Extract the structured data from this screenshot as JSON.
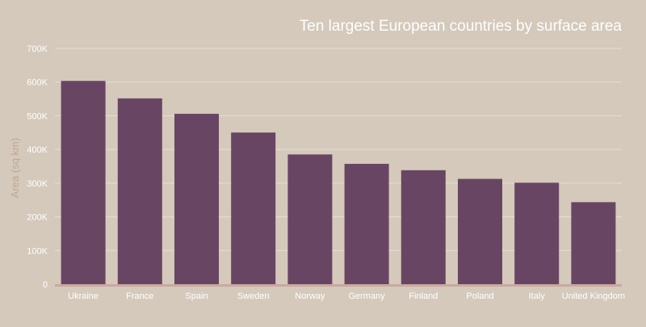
{
  "colors": {
    "background": "#d4c9bb",
    "bar": "#684663",
    "gridline": "#e6ded4",
    "baseline": "#c9a9a0",
    "title": "#ffffff",
    "tick_label": "#ffffff",
    "axis_title": "#c2a892"
  },
  "chart_data": {
    "type": "bar",
    "title": "Ten largest European countries by surface area",
    "xlabel": "",
    "ylabel": "Area (sq km)",
    "ylim": [
      0,
      700000
    ],
    "yticks": [
      0,
      100000,
      200000,
      300000,
      400000,
      500000,
      600000,
      700000
    ],
    "ytick_labels": [
      "0",
      "100K",
      "200K",
      "300K",
      "400K",
      "500K",
      "600K",
      "700K"
    ],
    "grid": true,
    "legend": "none",
    "categories": [
      "Ukraine",
      "France",
      "Spain",
      "Sweden",
      "Norway",
      "Germany",
      "Finland",
      "Poland",
      "Italy",
      "United Kingdom"
    ],
    "values": [
      603550,
      551695,
      505992,
      450295,
      385207,
      357386,
      338424,
      312696,
      301340,
      243610
    ]
  }
}
